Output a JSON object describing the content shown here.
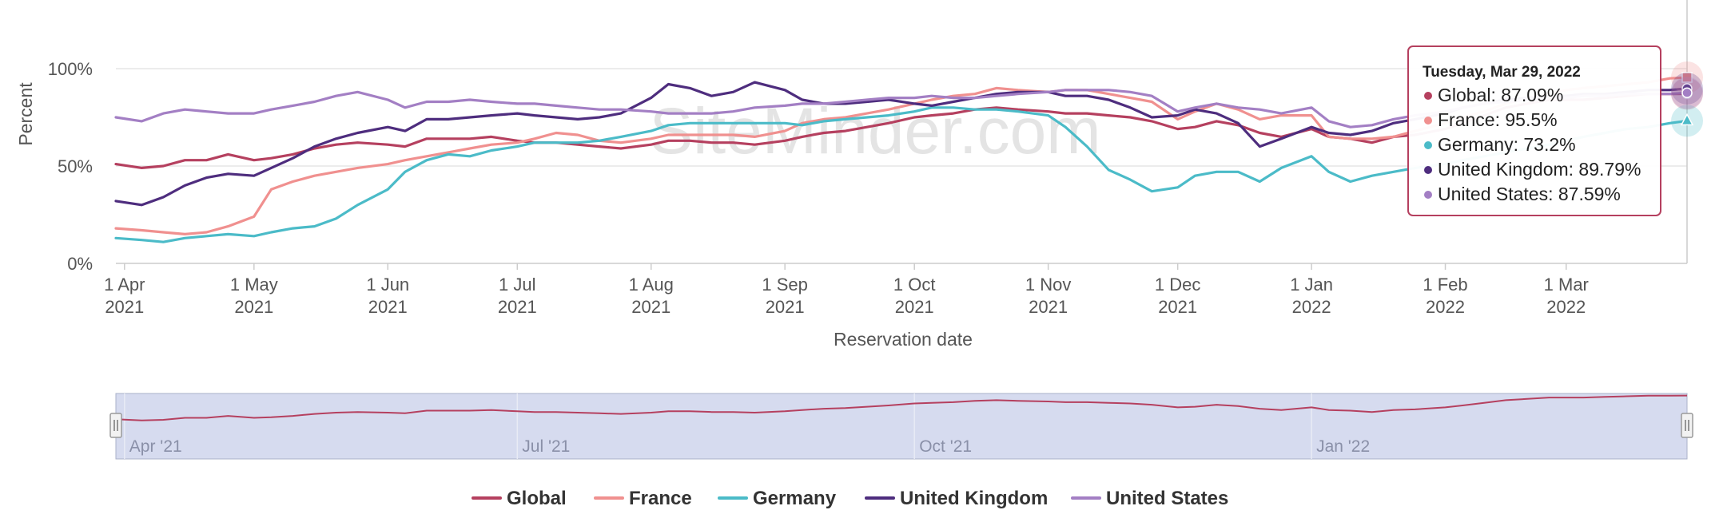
{
  "chart_data": {
    "type": "line",
    "watermark": "SiteMinder.com",
    "xlabel": "Reservation date",
    "ylabel": "Percent",
    "ylim": [
      0,
      100
    ],
    "x_tick_labels": [
      {
        "date": "2021-04-01",
        "line1": "1 Apr",
        "line2": "2021"
      },
      {
        "date": "2021-05-01",
        "line1": "1 May",
        "line2": "2021"
      },
      {
        "date": "2021-06-01",
        "line1": "1 Jun",
        "line2": "2021"
      },
      {
        "date": "2021-07-01",
        "line1": "1 Jul",
        "line2": "2021"
      },
      {
        "date": "2021-08-01",
        "line1": "1 Aug",
        "line2": "2021"
      },
      {
        "date": "2021-09-01",
        "line1": "1 Sep",
        "line2": "2021"
      },
      {
        "date": "2021-10-01",
        "line1": "1 Oct",
        "line2": "2021"
      },
      {
        "date": "2021-11-01",
        "line1": "1 Nov",
        "line2": "2021"
      },
      {
        "date": "2021-12-01",
        "line1": "1 Dec",
        "line2": "2021"
      },
      {
        "date": "2022-01-01",
        "line1": "1 Jan",
        "line2": "2022"
      },
      {
        "date": "2022-02-01",
        "line1": "1 Feb",
        "line2": "2022"
      },
      {
        "date": "2022-03-01",
        "line1": "1 Mar",
        "line2": "2022"
      }
    ],
    "y_tick_labels": [
      {
        "value": 0,
        "label": "0%"
      },
      {
        "value": 50,
        "label": "50%"
      },
      {
        "value": 100,
        "label": "100%"
      }
    ],
    "x": [
      "2021-03-30",
      "2021-04-05",
      "2021-04-10",
      "2021-04-15",
      "2021-04-20",
      "2021-04-25",
      "2021-05-01",
      "2021-05-05",
      "2021-05-10",
      "2021-05-15",
      "2021-05-20",
      "2021-05-25",
      "2021-06-01",
      "2021-06-05",
      "2021-06-10",
      "2021-06-15",
      "2021-06-20",
      "2021-06-25",
      "2021-07-01",
      "2021-07-05",
      "2021-07-10",
      "2021-07-15",
      "2021-07-20",
      "2021-07-25",
      "2021-08-01",
      "2021-08-05",
      "2021-08-10",
      "2021-08-15",
      "2021-08-20",
      "2021-08-25",
      "2021-09-01",
      "2021-09-05",
      "2021-09-10",
      "2021-09-15",
      "2021-09-20",
      "2021-09-25",
      "2021-10-01",
      "2021-10-05",
      "2021-10-10",
      "2021-10-15",
      "2021-10-20",
      "2021-10-25",
      "2021-11-01",
      "2021-11-05",
      "2021-11-10",
      "2021-11-15",
      "2021-11-20",
      "2021-11-25",
      "2021-12-01",
      "2021-12-05",
      "2021-12-10",
      "2021-12-15",
      "2021-12-20",
      "2021-12-25",
      "2022-01-01",
      "2022-01-05",
      "2022-01-10",
      "2022-01-15",
      "2022-01-20",
      "2022-01-25",
      "2022-02-01",
      "2022-02-05",
      "2022-02-10",
      "2022-02-15",
      "2022-02-20",
      "2022-02-25",
      "2022-03-01",
      "2022-03-05",
      "2022-03-10",
      "2022-03-15",
      "2022-03-20",
      "2022-03-25",
      "2022-03-29"
    ],
    "series": [
      {
        "name": "Global",
        "color": "#b5405f",
        "values": [
          51,
          49,
          50,
          53,
          53,
          56,
          53,
          54,
          56,
          59,
          61,
          62,
          61,
          60,
          64,
          64,
          64,
          65,
          63,
          62,
          62,
          61,
          60,
          59,
          61,
          63,
          63,
          62,
          62,
          61,
          63,
          65,
          67,
          68,
          70,
          72,
          75,
          76,
          77,
          79,
          80,
          79,
          78,
          77,
          77,
          76,
          75,
          73,
          69,
          70,
          73,
          71,
          67,
          65,
          69,
          65,
          64,
          62,
          65,
          66,
          69,
          72,
          76,
          80,
          82,
          84,
          84,
          84,
          85,
          86,
          87,
          87,
          87.09
        ]
      },
      {
        "name": "France",
        "color": "#f0908f",
        "values": [
          18,
          17,
          16,
          15,
          16,
          19,
          24,
          38,
          42,
          45,
          47,
          49,
          51,
          53,
          55,
          57,
          59,
          61,
          62,
          64,
          67,
          66,
          63,
          62,
          64,
          66,
          66,
          66,
          66,
          65,
          68,
          72,
          74,
          75,
          77,
          79,
          82,
          84,
          86,
          87,
          90,
          89,
          88,
          89,
          89,
          87,
          85,
          83,
          74,
          78,
          82,
          79,
          74,
          76,
          76,
          65,
          64,
          64,
          65,
          68,
          72,
          75,
          78,
          82,
          85,
          87,
          89,
          90,
          91,
          92,
          93,
          95,
          95.5
        ]
      },
      {
        "name": "Germany",
        "color": "#4bbbc8",
        "values": [
          13,
          12,
          11,
          13,
          14,
          15,
          14,
          16,
          18,
          19,
          23,
          30,
          38,
          47,
          53,
          56,
          55,
          58,
          60,
          62,
          62,
          62,
          63,
          65,
          68,
          71,
          72,
          72,
          72,
          72,
          72,
          71,
          73,
          74,
          75,
          76,
          78,
          80,
          80,
          79,
          79,
          78,
          76,
          70,
          60,
          48,
          43,
          37,
          39,
          45,
          47,
          47,
          42,
          49,
          55,
          47,
          42,
          45,
          47,
          49,
          51,
          53,
          55,
          57,
          59,
          61,
          63,
          65,
          67,
          69,
          70,
          72,
          73.2
        ]
      },
      {
        "name": "United Kingdom",
        "color": "#4e2d7e",
        "values": [
          32,
          30,
          34,
          40,
          44,
          46,
          45,
          49,
          54,
          60,
          64,
          67,
          70,
          68,
          74,
          74,
          75,
          76,
          77,
          76,
          75,
          74,
          75,
          77,
          85,
          92,
          90,
          86,
          88,
          93,
          89,
          84,
          82,
          82,
          83,
          84,
          82,
          81,
          83,
          85,
          87,
          88,
          88,
          86,
          86,
          84,
          80,
          75,
          76,
          79,
          77,
          72,
          60,
          64,
          70,
          67,
          66,
          68,
          72,
          74,
          77,
          80,
          82,
          84,
          85,
          86,
          86,
          87,
          87,
          88,
          89,
          89,
          89.79
        ]
      },
      {
        "name": "United States",
        "color": "#a37fc4",
        "values": [
          75,
          73,
          77,
          79,
          78,
          77,
          77,
          79,
          81,
          83,
          86,
          88,
          84,
          80,
          83,
          83,
          84,
          83,
          82,
          82,
          81,
          80,
          79,
          79,
          78,
          77,
          77,
          77,
          78,
          80,
          81,
          82,
          82,
          83,
          84,
          85,
          85,
          86,
          85,
          85,
          86,
          87,
          88,
          89,
          89,
          89,
          88,
          86,
          78,
          80,
          82,
          80,
          79,
          77,
          80,
          73,
          70,
          71,
          74,
          76,
          78,
          80,
          82,
          83,
          84,
          85,
          85,
          86,
          86,
          87,
          87,
          87,
          87.59
        ]
      }
    ],
    "tooltip": {
      "date": "Tuesday, Mar 29, 2022",
      "rows": [
        {
          "name": "Global",
          "text": "Global: 87.09%"
        },
        {
          "name": "France",
          "text": "France: 95.5%"
        },
        {
          "name": "Germany",
          "text": "Germany: 73.2%"
        },
        {
          "name": "United Kingdom",
          "text": "United Kingdom: 89.79%"
        },
        {
          "name": "United States",
          "text": "United States: 87.59%"
        }
      ]
    },
    "navigator": {
      "labels": [
        "Apr '21",
        "Jul '21",
        "Oct '21",
        "Jan '22"
      ],
      "label_dates": [
        "2021-04-01",
        "2021-07-01",
        "2021-10-01",
        "2022-01-01"
      ],
      "background": "#d6dbef",
      "series": "Global"
    },
    "legend": [
      "Global",
      "France",
      "Germany",
      "United Kingdom",
      "United States"
    ],
    "legend_position": "bottom-center",
    "grid": true
  }
}
